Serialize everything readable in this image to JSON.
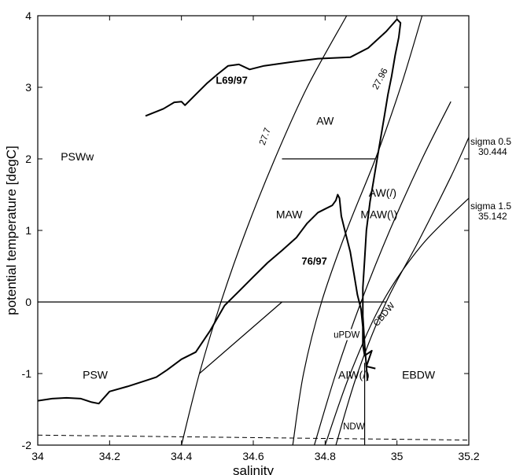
{
  "chart_data": {
    "type": "line",
    "xlabel": "salinity",
    "ylabel": "potential temperature [degC]",
    "xlim": [
      34,
      35.2
    ],
    "ylim": [
      -2,
      4
    ],
    "x_ticks": [
      "34",
      "34.2",
      "34.4",
      "34.6",
      "34.8",
      "35",
      "35.2"
    ],
    "y_ticks": [
      "-2",
      "-1",
      "0",
      "1",
      "2",
      "3",
      "4"
    ],
    "grid": false,
    "isopycnals": [
      {
        "label": "27.7",
        "points": [
          [
            34.4,
            -2.0
          ],
          [
            34.45,
            -1.0
          ],
          [
            34.51,
            0.0
          ],
          [
            34.58,
            1.0
          ],
          [
            34.66,
            2.0
          ],
          [
            34.75,
            3.0
          ],
          [
            34.86,
            4.0
          ]
        ]
      },
      {
        "label": "27.96",
        "points": [
          [
            34.71,
            -2.0
          ],
          [
            34.74,
            -1.0
          ],
          [
            34.79,
            0.0
          ],
          [
            34.86,
            1.0
          ],
          [
            34.94,
            2.0
          ],
          [
            35.01,
            3.0
          ],
          [
            35.07,
            4.0
          ]
        ]
      },
      {
        "label": "",
        "points": [
          [
            34.77,
            -2.0
          ],
          [
            34.83,
            -1.0
          ],
          [
            34.9,
            0.0
          ],
          [
            34.98,
            1.0
          ],
          [
            35.07,
            2.0
          ],
          [
            35.15,
            2.8
          ]
        ]
      },
      {
        "label": "CBDW",
        "points": [
          [
            34.83,
            -2.0
          ],
          [
            34.89,
            -1.0
          ],
          [
            34.97,
            0.0
          ],
          [
            35.06,
            0.85
          ],
          [
            35.15,
            1.75
          ],
          [
            35.2,
            2.3
          ]
        ]
      },
      {
        "label": "",
        "points": [
          [
            34.8,
            -2.0
          ],
          [
            34.87,
            -1.0
          ],
          [
            34.96,
            0.0
          ],
          [
            35.07,
            0.8
          ],
          [
            35.2,
            1.45
          ]
        ]
      }
    ],
    "boundaries": [
      {
        "name": "AW/MAW",
        "points": [
          [
            34.68,
            2.0
          ],
          [
            34.94,
            2.0
          ]
        ]
      },
      {
        "name": "PSWw/PSW",
        "points": [
          [
            34.0,
            0.0
          ],
          [
            34.97,
            0.0
          ]
        ]
      },
      {
        "name": "PSW/AIW",
        "points": [
          [
            34.45,
            -1.0
          ],
          [
            34.68,
            0.0
          ]
        ]
      },
      {
        "name": "NDW",
        "points": [
          [
            34.91,
            -0.85
          ],
          [
            34.91,
            -2.0
          ]
        ]
      }
    ],
    "freezing_line": {
      "style": "dashed",
      "points": [
        [
          34.0,
          -1.86
        ],
        [
          35.2,
          -1.93
        ]
      ]
    },
    "series": [
      {
        "name": "L69/97",
        "points": [
          [
            34.3,
            2.6
          ],
          [
            34.35,
            2.7
          ],
          [
            34.38,
            2.79
          ],
          [
            34.4,
            2.8
          ],
          [
            34.41,
            2.75
          ],
          [
            34.44,
            2.9
          ],
          [
            34.47,
            3.05
          ],
          [
            34.5,
            3.18
          ],
          [
            34.53,
            3.3
          ],
          [
            34.56,
            3.32
          ],
          [
            34.59,
            3.25
          ],
          [
            34.63,
            3.3
          ],
          [
            34.7,
            3.35
          ],
          [
            34.78,
            3.4
          ],
          [
            34.87,
            3.42
          ],
          [
            34.92,
            3.55
          ],
          [
            34.97,
            3.78
          ],
          [
            35.0,
            3.95
          ],
          [
            35.01,
            3.9
          ],
          [
            35.005,
            3.7
          ],
          [
            34.995,
            3.45
          ],
          [
            34.985,
            3.15
          ],
          [
            34.975,
            2.9
          ],
          [
            34.965,
            2.6
          ],
          [
            34.955,
            2.3
          ],
          [
            34.945,
            2.0
          ],
          [
            34.935,
            1.7
          ],
          [
            34.925,
            1.4
          ],
          [
            34.915,
            1.0
          ],
          [
            34.91,
            0.6
          ],
          [
            34.905,
            0.2
          ],
          [
            34.905,
            -0.2
          ],
          [
            34.91,
            -0.6
          ],
          [
            34.915,
            -0.9
          ],
          [
            34.918,
            -1.1
          ]
        ]
      },
      {
        "name": "76/97",
        "points": [
          [
            34.0,
            -1.38
          ],
          [
            34.04,
            -1.35
          ],
          [
            34.08,
            -1.34
          ],
          [
            34.12,
            -1.35
          ],
          [
            34.15,
            -1.4
          ],
          [
            34.17,
            -1.42
          ],
          [
            34.2,
            -1.25
          ],
          [
            34.25,
            -1.18
          ],
          [
            34.3,
            -1.1
          ],
          [
            34.33,
            -1.05
          ],
          [
            34.36,
            -0.95
          ],
          [
            34.4,
            -0.8
          ],
          [
            34.44,
            -0.7
          ],
          [
            34.48,
            -0.4
          ],
          [
            34.52,
            -0.05
          ],
          [
            34.56,
            0.15
          ],
          [
            34.6,
            0.35
          ],
          [
            34.64,
            0.55
          ],
          [
            34.68,
            0.72
          ],
          [
            34.72,
            0.9
          ],
          [
            34.75,
            1.1
          ],
          [
            34.78,
            1.25
          ],
          [
            34.8,
            1.3
          ],
          [
            34.82,
            1.35
          ],
          [
            34.83,
            1.42
          ],
          [
            34.835,
            1.5
          ],
          [
            34.84,
            1.45
          ],
          [
            34.845,
            1.2
          ],
          [
            34.855,
            1.0
          ],
          [
            34.87,
            0.7
          ],
          [
            34.88,
            0.4
          ],
          [
            34.89,
            0.1
          ],
          [
            34.9,
            -0.1
          ],
          [
            34.905,
            -0.35
          ],
          [
            34.905,
            -0.6
          ],
          [
            34.91,
            -0.75
          ],
          [
            34.93,
            -0.68
          ],
          [
            34.915,
            -0.9
          ],
          [
            34.94,
            -0.93
          ]
        ]
      }
    ],
    "annotations": [
      {
        "text": "L69/97",
        "x": 34.54,
        "y": 3.05,
        "style": "bold"
      },
      {
        "text": "76/97",
        "x": 34.77,
        "y": 0.52,
        "style": "bold"
      },
      {
        "text": "AW",
        "x": 34.8,
        "y": 2.48
      },
      {
        "text": "PSWw",
        "x": 34.11,
        "y": 1.98
      },
      {
        "text": "MAW",
        "x": 34.7,
        "y": 1.17
      },
      {
        "text": "AW(/)",
        "x": 34.96,
        "y": 1.47
      },
      {
        "text": "MAW(\\)",
        "x": 34.95,
        "y": 1.17
      },
      {
        "text": "PSW",
        "x": 34.16,
        "y": -1.07
      },
      {
        "text": "AIW(/)",
        "x": 34.88,
        "y": -1.07
      },
      {
        "text": "EBDW",
        "x": 35.06,
        "y": -1.07
      },
      {
        "text": "uPDW",
        "x": 34.86,
        "y": -0.5,
        "small": true
      },
      {
        "text": "NDW",
        "x": 34.88,
        "y": -1.78,
        "small": true
      },
      {
        "text": "CBDW",
        "x": 34.97,
        "y": -0.2,
        "small": true,
        "rotate": -50
      },
      {
        "text": "27.7",
        "x": 34.64,
        "y": 2.3,
        "small": true,
        "rotate": -70
      },
      {
        "text": "27.96",
        "x": 34.96,
        "y": 3.1,
        "small": true,
        "rotate": -62
      }
    ],
    "side_labels": [
      {
        "line1": "sigma 0.5",
        "line2": "30.444",
        "y": 2.02
      },
      {
        "line1": "sigma 1.5",
        "line2": "35.142",
        "y": 1.12
      }
    ]
  }
}
